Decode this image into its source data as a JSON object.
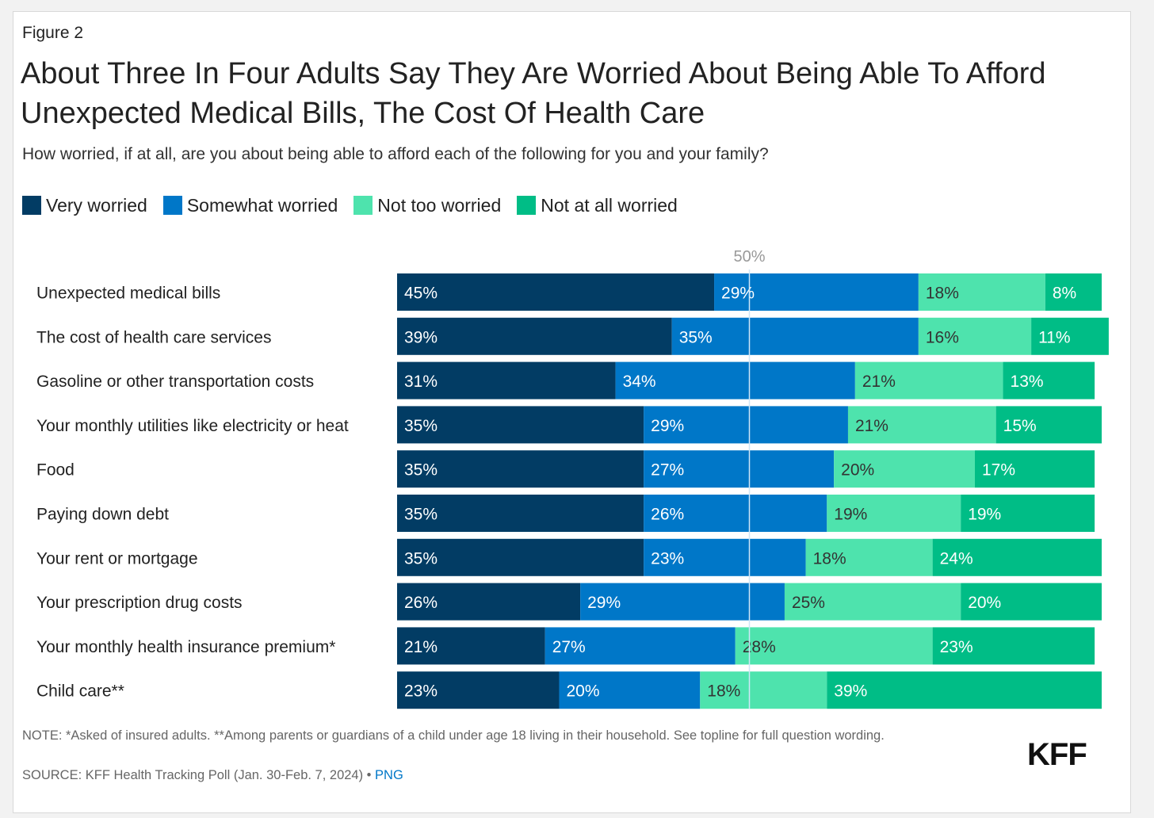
{
  "figure_label": "Figure 2",
  "title": "About Three In Four Adults Say They Are Worried About Being Able To Afford Unexpected Medical Bills, The Cost Of Health Care",
  "subtitle": "How worried, if at all, are you about being able to afford each of the following for you and your family?",
  "colors": {
    "very_worried": "#023c64",
    "somewhat_worried": "#0077c8",
    "not_too_worried": "#4ee3ad",
    "not_at_all_worried": "#00bd86",
    "midline": "#cfe6f7"
  },
  "chart_data": {
    "type": "bar",
    "orientation": "horizontal",
    "stacked": true,
    "reference_line": {
      "value": 50,
      "label": "50%"
    },
    "xlim": [
      0,
      100
    ],
    "categories": [
      "Unexpected medical bills",
      "The cost of health care services",
      "Gasoline or other transportation costs",
      "Your monthly utilities like electricity or heat",
      "Food",
      "Paying down debt",
      "Your rent or mortgage",
      "Your prescription drug costs",
      "Your monthly health insurance premium*",
      "Child care**"
    ],
    "series": [
      {
        "name": "Very worried",
        "color": "#023c64",
        "label_color": "#ffffff",
        "values": [
          45,
          39,
          31,
          35,
          35,
          35,
          35,
          26,
          21,
          23
        ]
      },
      {
        "name": "Somewhat worried",
        "color": "#0077c8",
        "label_color": "#ffffff",
        "values": [
          29,
          35,
          34,
          29,
          27,
          26,
          23,
          29,
          27,
          20
        ]
      },
      {
        "name": "Not too worried",
        "color": "#4ee3ad",
        "label_color": "#333333",
        "values": [
          18,
          16,
          21,
          21,
          20,
          19,
          18,
          25,
          28,
          18
        ]
      },
      {
        "name": "Not at all worried",
        "color": "#00bd86",
        "label_color": "#ffffff",
        "values": [
          8,
          11,
          13,
          15,
          17,
          19,
          24,
          20,
          23,
          39
        ]
      }
    ],
    "legend_position": "top-left"
  },
  "footer": {
    "note": "NOTE: *Asked of insured adults. **Among parents or guardians of a child under age 18 living in their household. See topline for full question wording.",
    "source_text": "SOURCE: KFF Health Tracking Poll (Jan. 30-Feb. 7, 2024) •",
    "png_link": "PNG",
    "logo": "KFF"
  }
}
